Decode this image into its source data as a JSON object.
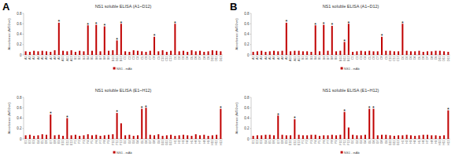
{
  "panel_labels": [
    "A",
    "B"
  ],
  "chart_data": [
    {
      "type": "bar",
      "title": "NS1 soluble ELISA (A1~D12)",
      "y_label": "Absorbance (A450nm)",
      "categories": [
        "A1",
        "A2",
        "A3",
        "A4",
        "A5",
        "A6",
        "A7",
        "A8",
        "A9",
        "A10",
        "A11",
        "A12",
        "B1",
        "B2",
        "B3",
        "B4",
        "B5",
        "B6",
        "B7",
        "B8",
        "B9",
        "B10",
        "B11",
        "B12",
        "C1",
        "C2",
        "C3",
        "C4",
        "C5",
        "C6",
        "C7",
        "C8",
        "C9",
        "C10",
        "C11",
        "C12",
        "D1",
        "D2",
        "D3",
        "D4",
        "D5",
        "D6",
        "D7",
        "D8",
        "D9",
        "D10",
        "D11",
        "D12"
      ],
      "series": [
        {
          "name": "NS1 - mAb",
          "color": "#c00000",
          "values": [
            0.07,
            0.06,
            0.08,
            0.07,
            0.08,
            0.07,
            0.06,
            0.09,
            0.62,
            0.08,
            0.07,
            0.09,
            0.06,
            0.08,
            0.07,
            0.57,
            0.08,
            0.58,
            0.07,
            0.55,
            0.08,
            0.09,
            0.28,
            0.6,
            0.07,
            0.06,
            0.09,
            0.08,
            0.07,
            0.06,
            0.08,
            0.35,
            0.07,
            0.09,
            0.06,
            0.08,
            0.6,
            0.07,
            0.08,
            0.06,
            0.09,
            0.07,
            0.08,
            0.06,
            0.07,
            0.09,
            0.08,
            0.07
          ]
        }
      ],
      "annotations": [
        {
          "category": "A9",
          "text": "*"
        },
        {
          "category": "B4",
          "text": "*"
        },
        {
          "category": "B6",
          "text": "*"
        },
        {
          "category": "B8",
          "text": "*"
        },
        {
          "category": "B11",
          "text": "*"
        },
        {
          "category": "B12",
          "text": "*"
        },
        {
          "category": "C8",
          "text": "*"
        },
        {
          "category": "D1",
          "text": "*"
        }
      ],
      "ylim": [
        0,
        0.8
      ],
      "yticks": [
        0,
        0.2,
        0.4,
        0.6,
        0.8
      ],
      "grid": false,
      "legend": "bottom"
    },
    {
      "type": "bar",
      "title": "NS1 soluble ELISA (E1~H12)",
      "y_label": "Absorbance (A450nm)",
      "categories": [
        "E1",
        "E2",
        "E3",
        "E4",
        "E5",
        "E6",
        "E7",
        "E8",
        "E9",
        "E10",
        "E11",
        "E12",
        "F1",
        "F2",
        "F3",
        "F4",
        "F5",
        "F6",
        "F7",
        "F8",
        "F9",
        "F10",
        "F11",
        "F12",
        "G1",
        "G2",
        "G3",
        "G4",
        "G5",
        "G6",
        "G7",
        "G8",
        "G9",
        "G10",
        "G11",
        "G12",
        "H1",
        "H2",
        "H3",
        "H4",
        "H5",
        "H6",
        "H7",
        "H8",
        "H9",
        "H10",
        "H11",
        "H12"
      ],
      "series": [
        {
          "name": "NS1 - mAb",
          "color": "#c00000",
          "values": [
            0.07,
            0.08,
            0.06,
            0.07,
            0.09,
            0.08,
            0.47,
            0.07,
            0.08,
            0.06,
            0.4,
            0.07,
            0.08,
            0.06,
            0.07,
            0.09,
            0.07,
            0.08,
            0.06,
            0.07,
            0.08,
            0.09,
            0.5,
            0.3,
            0.07,
            0.08,
            0.06,
            0.07,
            0.58,
            0.6,
            0.08,
            0.07,
            0.09,
            0.06,
            0.07,
            0.08,
            0.06,
            0.07,
            0.08,
            0.07,
            0.06,
            0.09,
            0.07,
            0.08,
            0.06,
            0.07,
            0.08,
            0.58
          ]
        }
      ],
      "annotations": [
        {
          "category": "E7",
          "text": "*"
        },
        {
          "category": "E11",
          "text": "*"
        },
        {
          "category": "F11",
          "text": "*"
        },
        {
          "category": "G5",
          "text": "*"
        },
        {
          "category": "G6",
          "text": "*"
        },
        {
          "category": "H12",
          "text": "*"
        }
      ],
      "ylim": [
        0,
        0.8
      ],
      "yticks": [
        0,
        0.2,
        0.4,
        0.6,
        0.8
      ],
      "grid": false,
      "legend": "bottom"
    },
    {
      "type": "bar",
      "title": "NS1 soluble ELISA (A1~D12)",
      "y_label": "Absorbance (A450nm)",
      "categories": [
        "A1",
        "A2",
        "A3",
        "A4",
        "A5",
        "A6",
        "A7",
        "A8",
        "A9",
        "A10",
        "A11",
        "A12",
        "B1",
        "B2",
        "B3",
        "B4",
        "B5",
        "B6",
        "B7",
        "B8",
        "B9",
        "B10",
        "B11",
        "B12",
        "C1",
        "C2",
        "C3",
        "C4",
        "C5",
        "C6",
        "C7",
        "C8",
        "C9",
        "C10",
        "C11",
        "C12",
        "D1",
        "D2",
        "D3",
        "D4",
        "D5",
        "D6",
        "D7",
        "D8",
        "D9",
        "D10",
        "D11",
        "D12"
      ],
      "series": [
        {
          "name": "NS1 - mAb",
          "color": "#c00000",
          "values": [
            0.06,
            0.07,
            0.08,
            0.06,
            0.07,
            0.08,
            0.07,
            0.08,
            0.62,
            0.07,
            0.08,
            0.08,
            0.07,
            0.07,
            0.06,
            0.57,
            0.07,
            0.58,
            0.08,
            0.56,
            0.07,
            0.08,
            0.25,
            0.6,
            0.06,
            0.07,
            0.08,
            0.07,
            0.08,
            0.07,
            0.07,
            0.35,
            0.08,
            0.08,
            0.07,
            0.07,
            0.6,
            0.08,
            0.07,
            0.07,
            0.08,
            0.06,
            0.07,
            0.07,
            0.08,
            0.08,
            0.07,
            0.06
          ]
        }
      ],
      "annotations": [
        {
          "category": "A9",
          "text": "*"
        },
        {
          "category": "B4",
          "text": "*"
        },
        {
          "category": "B6",
          "text": "*"
        },
        {
          "category": "B8",
          "text": "*"
        },
        {
          "category": "B11",
          "text": "*"
        },
        {
          "category": "B12",
          "text": "*"
        },
        {
          "category": "C8",
          "text": "*"
        },
        {
          "category": "D1",
          "text": "*"
        }
      ],
      "ylim": [
        0,
        0.8
      ],
      "yticks": [
        0,
        0.2,
        0.4,
        0.6,
        0.8
      ],
      "grid": false,
      "legend": "bottom"
    },
    {
      "type": "bar",
      "title": "NS1 soluble ELISA (E1~H12)",
      "y_label": "Absorbance (A450nm)",
      "categories": [
        "E1",
        "E2",
        "E3",
        "E4",
        "E5",
        "E6",
        "E7",
        "E8",
        "E9",
        "E10",
        "E11",
        "E12",
        "F1",
        "F2",
        "F3",
        "F4",
        "F5",
        "F6",
        "F7",
        "F8",
        "F9",
        "F10",
        "F11",
        "F12",
        "G1",
        "G2",
        "G3",
        "G4",
        "G5",
        "G6",
        "G7",
        "G8",
        "G9",
        "G10",
        "G11",
        "G12",
        "H1",
        "H2",
        "H3",
        "H4",
        "H5",
        "H6",
        "H7",
        "H8",
        "H9",
        "H10",
        "H11",
        "H12"
      ],
      "series": [
        {
          "name": "NS1 - mAb",
          "color": "#c00000",
          "values": [
            0.06,
            0.07,
            0.07,
            0.08,
            0.08,
            0.07,
            0.45,
            0.08,
            0.07,
            0.07,
            0.38,
            0.08,
            0.07,
            0.07,
            0.08,
            0.08,
            0.06,
            0.07,
            0.07,
            0.08,
            0.07,
            0.08,
            0.52,
            0.22,
            0.08,
            0.07,
            0.07,
            0.08,
            0.58,
            0.58,
            0.07,
            0.08,
            0.08,
            0.07,
            0.06,
            0.07,
            0.07,
            0.08,
            0.07,
            0.06,
            0.07,
            0.08,
            0.08,
            0.07,
            0.07,
            0.06,
            0.07,
            0.55
          ]
        }
      ],
      "annotations": [
        {
          "category": "E7",
          "text": "*"
        },
        {
          "category": "E11",
          "text": "*"
        },
        {
          "category": "F11",
          "text": "*"
        },
        {
          "category": "G5",
          "text": "*"
        },
        {
          "category": "G6",
          "text": "*"
        },
        {
          "category": "H12",
          "text": "*"
        }
      ],
      "ylim": [
        0,
        0.8
      ],
      "yticks": [
        0,
        0.2,
        0.4,
        0.6,
        0.8
      ],
      "grid": false,
      "legend": "bottom"
    }
  ]
}
